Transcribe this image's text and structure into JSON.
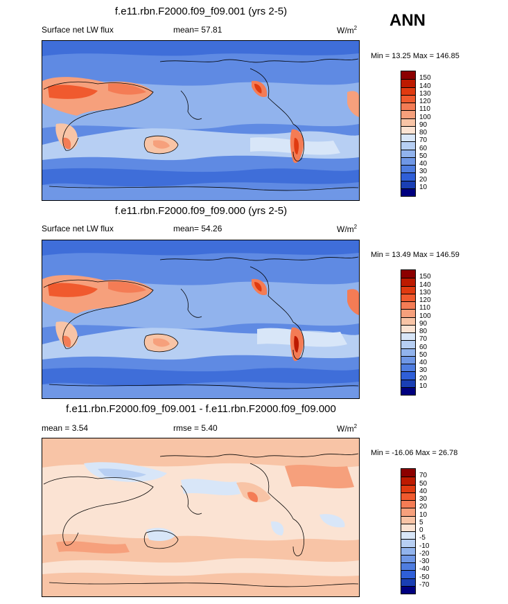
{
  "season": "ANN",
  "panels": [
    {
      "title": "f.e11.rbn.F2000.f09_f09.001 (yrs 2-5)",
      "left_label": "Surface net LW flux",
      "center_label": "mean=  57.81",
      "units": "W/m",
      "units_sup": "2",
      "minmax": "Min =  13.25 Max = 146.85",
      "colorbar": {
        "labels": [
          "150",
          "140",
          "130",
          "120",
          "110",
          "100",
          "90",
          "80",
          "70",
          "60",
          "50",
          "40",
          "30",
          "20",
          "10"
        ],
        "colors": [
          "#8c0000",
          "#bd1a00",
          "#e03a10",
          "#f05a2e",
          "#f47c55",
          "#f6a07c",
          "#f8c4a6",
          "#fbe3d3",
          "#d8e6f8",
          "#b7cff3",
          "#91b3ed",
          "#6f97e6",
          "#4f7de0",
          "#2f5fd8",
          "#1a3fb4",
          "#00007f"
        ]
      }
    },
    {
      "title": "f.e11.rbn.F2000.f09_f09.000 (yrs 2-5)",
      "left_label": "Surface net LW flux",
      "center_label": "mean=  54.26",
      "units": "W/m",
      "units_sup": "2",
      "minmax": "Min =  13.49 Max = 146.59",
      "colorbar": {
        "labels": [
          "150",
          "140",
          "130",
          "120",
          "110",
          "100",
          "90",
          "80",
          "70",
          "60",
          "50",
          "40",
          "30",
          "20",
          "10"
        ],
        "colors": [
          "#8c0000",
          "#bd1a00",
          "#e03a10",
          "#f05a2e",
          "#f47c55",
          "#f6a07c",
          "#f8c4a6",
          "#fbe3d3",
          "#d8e6f8",
          "#b7cff3",
          "#91b3ed",
          "#6f97e6",
          "#4f7de0",
          "#2f5fd8",
          "#1a3fb4",
          "#00007f"
        ]
      }
    },
    {
      "title": "f.e11.rbn.F2000.f09_f09.001 - f.e11.rbn.F2000.f09_f09.000",
      "left_label": "mean =   3.54",
      "center_label": "rmse =   5.40",
      "units": "W/m",
      "units_sup": "2",
      "minmax": "Min = -16.06 Max =  26.78",
      "colorbar": {
        "labels": [
          "70",
          "50",
          "40",
          "30",
          "20",
          "10",
          "5",
          "0",
          "-5",
          "-10",
          "-20",
          "-30",
          "-40",
          "-50",
          "-70"
        ],
        "colors": [
          "#8c0000",
          "#bd1a00",
          "#e03a10",
          "#f05a2e",
          "#f47c55",
          "#f6a07c",
          "#f8c4a6",
          "#fbe3d3",
          "#d8e6f8",
          "#b7cff3",
          "#91b3ed",
          "#6f97e6",
          "#4f7de0",
          "#2f5fd8",
          "#1a3fb4",
          "#00007f"
        ]
      }
    }
  ]
}
